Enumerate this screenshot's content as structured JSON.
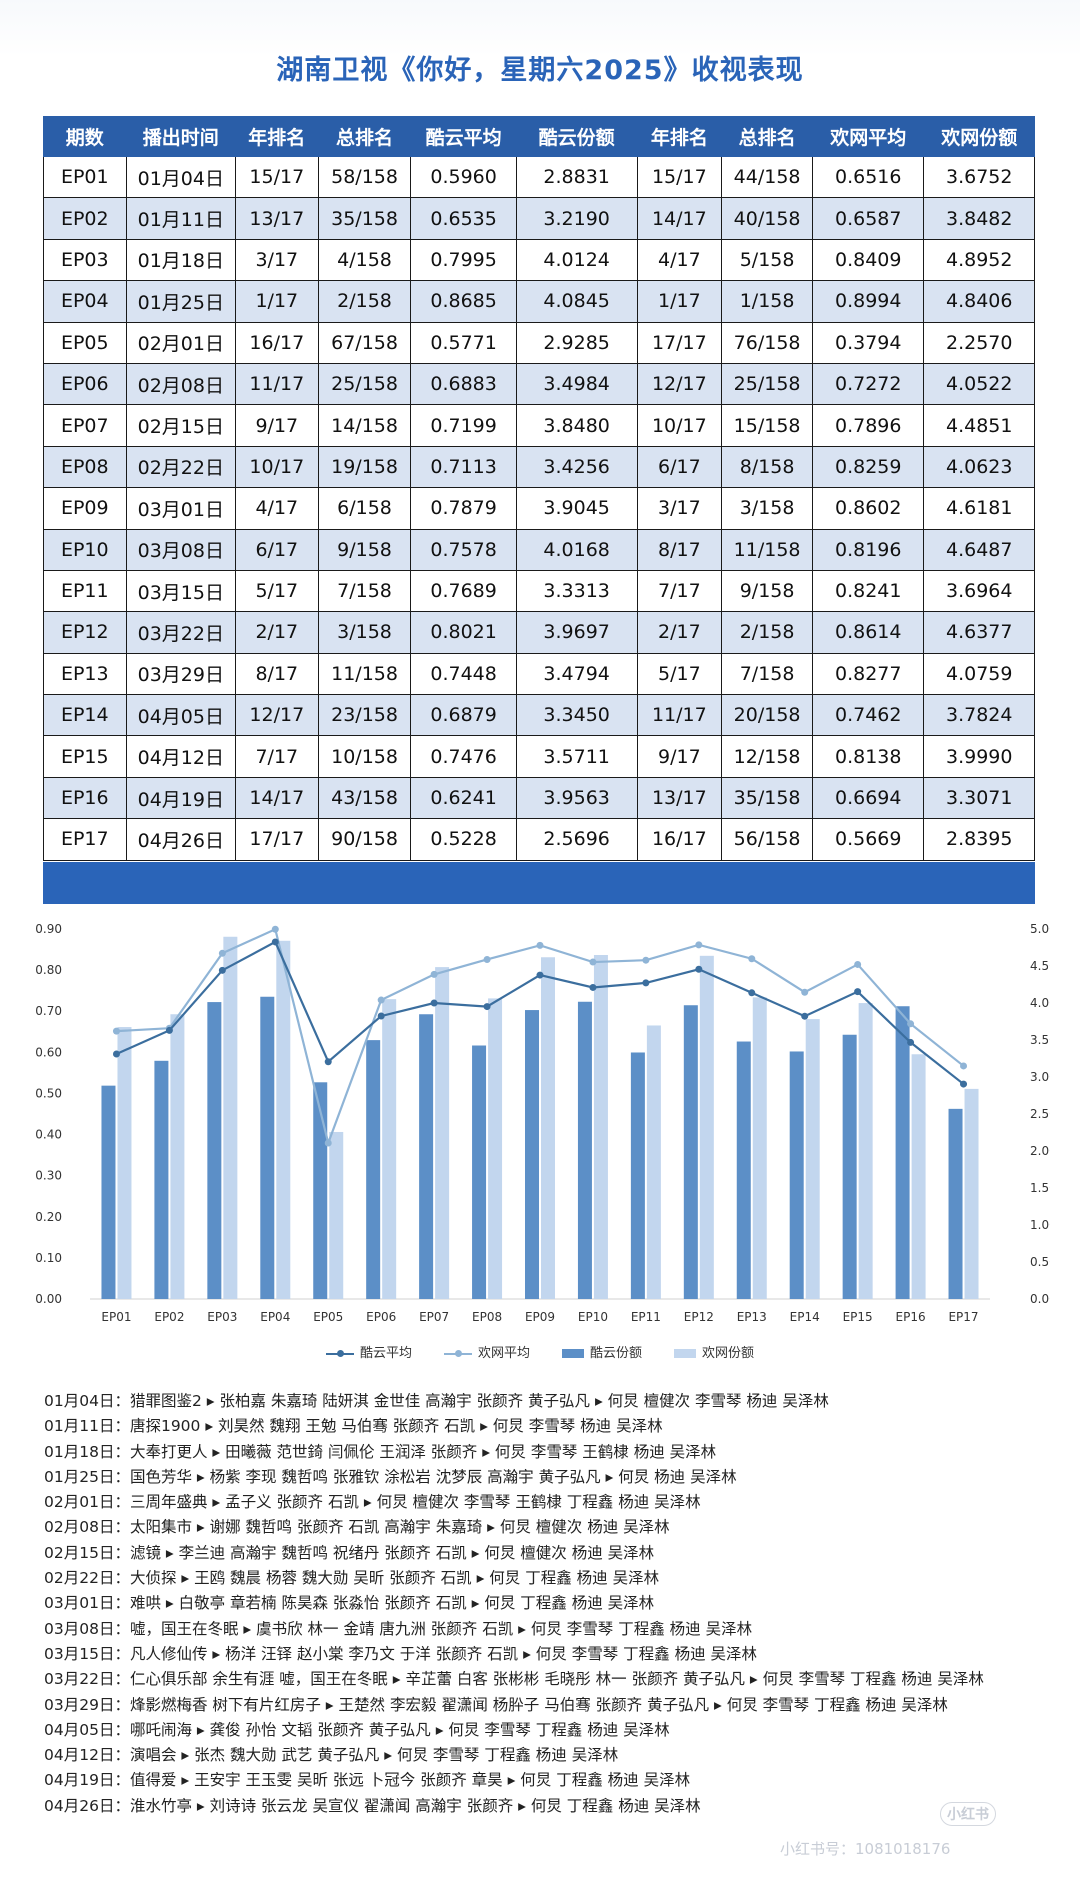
{
  "title": "湖南卫视《你好，星期六2025》收视表现",
  "table": {
    "headers": [
      "期数",
      "播出时间",
      "年排名",
      "总排名",
      "酷云平均",
      "酷云份额",
      "年排名",
      "总排名",
      "欢网平均",
      "欢网份额"
    ],
    "rows": [
      [
        "EP01",
        "01月04日",
        "15/17",
        "58/158",
        "0.5960",
        "2.8831",
        "15/17",
        "44/158",
        "0.6516",
        "3.6752"
      ],
      [
        "EP02",
        "01月11日",
        "13/17",
        "35/158",
        "0.6535",
        "3.2190",
        "14/17",
        "40/158",
        "0.6587",
        "3.8482"
      ],
      [
        "EP03",
        "01月18日",
        "3/17",
        "4/158",
        "0.7995",
        "4.0124",
        "4/17",
        "5/158",
        "0.8409",
        "4.8952"
      ],
      [
        "EP04",
        "01月25日",
        "1/17",
        "2/158",
        "0.8685",
        "4.0845",
        "1/17",
        "1/158",
        "0.8994",
        "4.8406"
      ],
      [
        "EP05",
        "02月01日",
        "16/17",
        "67/158",
        "0.5771",
        "2.9285",
        "17/17",
        "76/158",
        "0.3794",
        "2.2570"
      ],
      [
        "EP06",
        "02月08日",
        "11/17",
        "25/158",
        "0.6883",
        "3.4984",
        "12/17",
        "25/158",
        "0.7272",
        "4.0522"
      ],
      [
        "EP07",
        "02月15日",
        "9/17",
        "14/158",
        "0.7199",
        "3.8480",
        "10/17",
        "15/158",
        "0.7896",
        "4.4851"
      ],
      [
        "EP08",
        "02月22日",
        "10/17",
        "19/158",
        "0.7113",
        "3.4256",
        "6/17",
        "8/158",
        "0.8259",
        "4.0623"
      ],
      [
        "EP09",
        "03月01日",
        "4/17",
        "6/158",
        "0.7879",
        "3.9045",
        "3/17",
        "3/158",
        "0.8602",
        "4.6181"
      ],
      [
        "EP10",
        "03月08日",
        "6/17",
        "9/158",
        "0.7578",
        "4.0168",
        "8/17",
        "11/158",
        "0.8196",
        "4.6487"
      ],
      [
        "EP11",
        "03月15日",
        "5/17",
        "7/158",
        "0.7689",
        "3.3313",
        "7/17",
        "9/158",
        "0.8241",
        "3.6964"
      ],
      [
        "EP12",
        "03月22日",
        "2/17",
        "3/158",
        "0.8021",
        "3.9697",
        "2/17",
        "2/158",
        "0.8614",
        "4.6377"
      ],
      [
        "EP13",
        "03月29日",
        "8/17",
        "11/158",
        "0.7448",
        "3.4794",
        "5/17",
        "7/158",
        "0.8277",
        "4.0759"
      ],
      [
        "EP14",
        "04月05日",
        "12/17",
        "23/158",
        "0.6879",
        "3.3450",
        "11/17",
        "20/158",
        "0.7462",
        "3.7824"
      ],
      [
        "EP15",
        "04月12日",
        "7/17",
        "10/158",
        "0.7476",
        "3.5711",
        "9/17",
        "12/158",
        "0.8138",
        "3.9990"
      ],
      [
        "EP16",
        "04月19日",
        "14/17",
        "43/158",
        "0.6241",
        "3.9563",
        "13/17",
        "35/158",
        "0.6694",
        "3.3071"
      ],
      [
        "EP17",
        "04月26日",
        "17/17",
        "90/158",
        "0.5228",
        "2.5696",
        "16/17",
        "56/158",
        "0.5669",
        "2.8395"
      ]
    ]
  },
  "chart_data": {
    "type": "bar",
    "categories": [
      "EP01",
      "EP02",
      "EP03",
      "EP04",
      "EP05",
      "EP06",
      "EP07",
      "EP08",
      "EP09",
      "EP10",
      "EP11",
      "EP12",
      "EP13",
      "EP14",
      "EP15",
      "EP16",
      "EP17"
    ],
    "series": [
      {
        "name": "酷云平均",
        "type": "line",
        "axis": "left",
        "color": "#3b6e9e",
        "values": [
          0.596,
          0.6535,
          0.7995,
          0.8685,
          0.5771,
          0.6883,
          0.7199,
          0.7113,
          0.7879,
          0.7578,
          0.7689,
          0.8021,
          0.7448,
          0.6879,
          0.7476,
          0.6241,
          0.5228
        ]
      },
      {
        "name": "欢网平均",
        "type": "line",
        "axis": "left",
        "color": "#8fb4d6",
        "values": [
          0.6516,
          0.6587,
          0.8409,
          0.8994,
          0.3794,
          0.7272,
          0.7896,
          0.8259,
          0.8602,
          0.8196,
          0.8241,
          0.8614,
          0.8277,
          0.7462,
          0.8138,
          0.6694,
          0.5669
        ]
      },
      {
        "name": "酷云份额",
        "type": "bar",
        "axis": "right",
        "color": "#5c8fc7",
        "values": [
          2.8831,
          3.219,
          4.0124,
          4.0845,
          2.9285,
          3.4984,
          3.848,
          3.4256,
          3.9045,
          4.0168,
          3.3313,
          3.9697,
          3.4794,
          3.345,
          3.5711,
          3.9563,
          2.5696
        ]
      },
      {
        "name": "欢网份额",
        "type": "bar",
        "axis": "right",
        "color": "#c2d6ee",
        "values": [
          3.6752,
          3.8482,
          4.8952,
          4.8406,
          2.257,
          4.0522,
          4.4851,
          4.0623,
          4.6181,
          4.6487,
          3.6964,
          4.6377,
          4.0759,
          3.7824,
          3.999,
          3.3071,
          2.8395
        ]
      }
    ],
    "left_ticks": [
      "0.00",
      "0.10",
      "0.20",
      "0.30",
      "0.40",
      "0.50",
      "0.60",
      "0.70",
      "0.80",
      "0.90"
    ],
    "right_ticks": [
      "0.00",
      "0.50",
      "1.00",
      "1.50",
      "2.00",
      "2.50",
      "3.00",
      "3.50",
      "4.00",
      "4.50",
      "5.00"
    ],
    "ylim_left": [
      0,
      0.9
    ],
    "ylim_right": [
      0,
      5.0
    ],
    "grid": false,
    "legend_position": "bottom"
  },
  "legend": [
    {
      "label": "酷云平均",
      "kind": "line",
      "color": "#3b6e9e"
    },
    {
      "label": "欢网平均",
      "kind": "line",
      "color": "#8fb4d6"
    },
    {
      "label": "酷云份额",
      "kind": "bar",
      "color": "#5c8fc7"
    },
    {
      "label": "欢网份额",
      "kind": "bar",
      "color": "#c2d6ee"
    }
  ],
  "guests": [
    {
      "date": "01月04日：",
      "text": "猎罪图鉴2 ▸ 张柏嘉 朱嘉琦 陆妍淇 金世佳 高瀚宇 张颜齐 黄子弘凡 ▸ 何炅 檀健次 李雪琴 杨迪 吴泽林"
    },
    {
      "date": "01月11日：",
      "text": "唐探1900 ▸ 刘昊然 魏翔 王勉 马伯骞 张颜齐 石凯 ▸ 何炅 李雪琴 杨迪 吴泽林"
    },
    {
      "date": "01月18日：",
      "text": "大奉打更人 ▸ 田曦薇 范世錡 闫佩伦 王润泽 张颜齐 ▸ 何炅 李雪琴 王鹤棣 杨迪 吴泽林"
    },
    {
      "date": "01月25日：",
      "text": "国色芳华 ▸ 杨紫 李现 魏哲鸣 张雅钦 涂松岩 沈梦辰 高瀚宇 黄子弘凡 ▸ 何炅 杨迪 吴泽林"
    },
    {
      "date": "02月01日：",
      "text": "三周年盛典 ▸ 孟子义 张颜齐 石凯 ▸ 何炅 檀健次 李雪琴 王鹤棣 丁程鑫 杨迪 吴泽林"
    },
    {
      "date": "02月08日：",
      "text": "太阳集市 ▸ 谢娜 魏哲鸣 张颜齐 石凯 高瀚宇 朱嘉琦 ▸ 何炅 檀健次 杨迪 吴泽林"
    },
    {
      "date": "02月15日：",
      "text": "滤镜 ▸ 李兰迪 高瀚宇 魏哲鸣 祝绪丹 张颜齐 石凯 ▸ 何炅 檀健次 杨迪 吴泽林"
    },
    {
      "date": "02月22日：",
      "text": "大侦探 ▸ 王鸥 魏晨 杨蓉 魏大勋 吴昕 张颜齐 石凯 ▸ 何炅 丁程鑫 杨迪 吴泽林"
    },
    {
      "date": "03月01日：",
      "text": "难哄 ▸ 白敬亭 章若楠 陈昊森 张淼怡 张颜齐 石凯 ▸ 何炅 丁程鑫 杨迪 吴泽林"
    },
    {
      "date": "03月08日：",
      "text": "嘘，国王在冬眠 ▸ 虞书欣 林一 金靖 唐九洲 张颜齐 石凯 ▸ 何炅 李雪琴 丁程鑫 杨迪 吴泽林"
    },
    {
      "date": "03月15日：",
      "text": "凡人修仙传 ▸ 杨洋 汪铎 赵小棠 李乃文 于洋 张颜齐 石凯 ▸ 何炅 李雪琴 丁程鑫 杨迪 吴泽林"
    },
    {
      "date": "03月22日：",
      "text": "仁心俱乐部 余生有涯 嘘，国王在冬眠 ▸ 辛芷蕾 白客 张彬彬 毛晓彤 林一 张颜齐 黄子弘凡 ▸ 何炅 李雪琴 丁程鑫 杨迪 吴泽林"
    },
    {
      "date": "03月29日：",
      "text": "烽影燃梅香 树下有片红房子 ▸ 王楚然 李宏毅 翟潇闻 杨肸子 马伯骞 张颜齐 黄子弘凡 ▸ 何炅 李雪琴 丁程鑫 杨迪 吴泽林"
    },
    {
      "date": "04月05日：",
      "text": "哪吒闹海 ▸ 龚俊 孙怡 文韬 张颜齐 黄子弘凡 ▸ 何炅 李雪琴 丁程鑫 杨迪 吴泽林"
    },
    {
      "date": "04月12日：",
      "text": "演唱会 ▸ 张杰 魏大勋 武艺 黄子弘凡 ▸ 何炅 李雪琴 丁程鑫 杨迪 吴泽林"
    },
    {
      "date": "04月19日：",
      "text": "值得爱 ▸ 王安宇 王玉雯 吴昕 张远 卜冠今 张颜齐 章昊 ▸ 何炅 丁程鑫 杨迪 吴泽林"
    },
    {
      "date": "04月26日：",
      "text": "淮水竹亭 ▸ 刘诗诗 张云龙 吴宣仪 翟潇闻 高瀚宇 张颜齐 ▸ 何炅 丁程鑫 杨迪 吴泽林"
    }
  ],
  "watermark": {
    "logo": "小红书",
    "id": "小红书号：1081018176"
  }
}
